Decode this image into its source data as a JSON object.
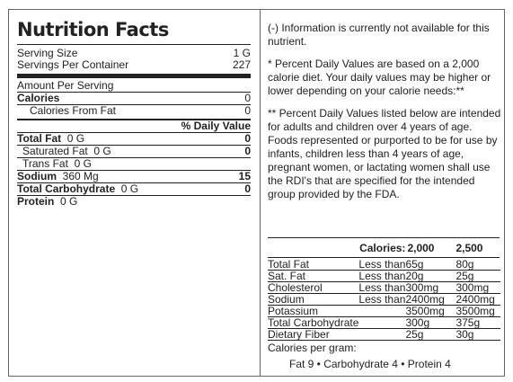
{
  "title": "Nutrition Facts",
  "serving_size": {
    "label": "Serving Size",
    "value": "1 G"
  },
  "servings_per_container": {
    "label": "Servings Per Container",
    "value": "227"
  },
  "amount_per_serving": "Amount Per Serving",
  "calories": {
    "label": "Calories",
    "value": "0"
  },
  "calories_from_fat": {
    "label": "Calories From Fat",
    "value": "0"
  },
  "daily_value_header": "% Daily Value",
  "nutrients": [
    {
      "label": "Total Fat",
      "amount": "0 G",
      "dv": "0"
    },
    {
      "label": "Saturated Fat",
      "amount": "0 G",
      "dv": "0"
    },
    {
      "label": "Trans Fat",
      "amount": "0 G",
      "dv": ""
    },
    {
      "label": "Sodium",
      "amount": "360 Mg",
      "dv": "15"
    },
    {
      "label": "Total Carbohydrate",
      "amount": "0 G",
      "dv": "0"
    },
    {
      "label": "Protein",
      "amount": "0 G",
      "dv": ""
    }
  ],
  "notes": {
    "not_available": "(-) Information is currently not available for this nutrient.",
    "percent_dv": "* Percent Daily Values are based on a 2,000 calorie diet. Your daily values may be higher or lower depending on your calorie needs:**",
    "percent_dv_adults": "** Percent Daily Values listed below are intended for adults and children over 4 years of age. Foods represented or purported to be for use by infants, children less than 4 years of age, pregnant women, or lactating women shall use the RDI's that are specified for the intended group provided by the FDA."
  },
  "dv_table": {
    "header": {
      "label": "Calories:",
      "col1": "2,000",
      "col2": "2,500"
    },
    "rows": [
      {
        "name": "Total Fat",
        "cond": "Less than",
        "v1": "65g",
        "v2": "80g"
      },
      {
        "name": "Sat. Fat",
        "cond": "Less than",
        "v1": "20g",
        "v2": "25g"
      },
      {
        "name": "Cholesterol",
        "cond": "Less than",
        "v1": "300mg",
        "v2": "300mg"
      },
      {
        "name": "Sodium",
        "cond": "Less than",
        "v1": "2400mg",
        "v2": "2400mg"
      },
      {
        "name": "Potassium",
        "cond": "",
        "v1": "3500mg",
        "v2": "3500mg"
      },
      {
        "name": "Total Carbohydrate",
        "cond": "",
        "v1": "300g",
        "v2": "375g"
      },
      {
        "name": "Dietary Fiber",
        "cond": "",
        "v1": "25g",
        "v2": "30g"
      }
    ]
  },
  "calories_per_gram": {
    "label": "Calories per gram:",
    "values": "Fat 9 • Carbohydrate 4 • Protein 4"
  }
}
